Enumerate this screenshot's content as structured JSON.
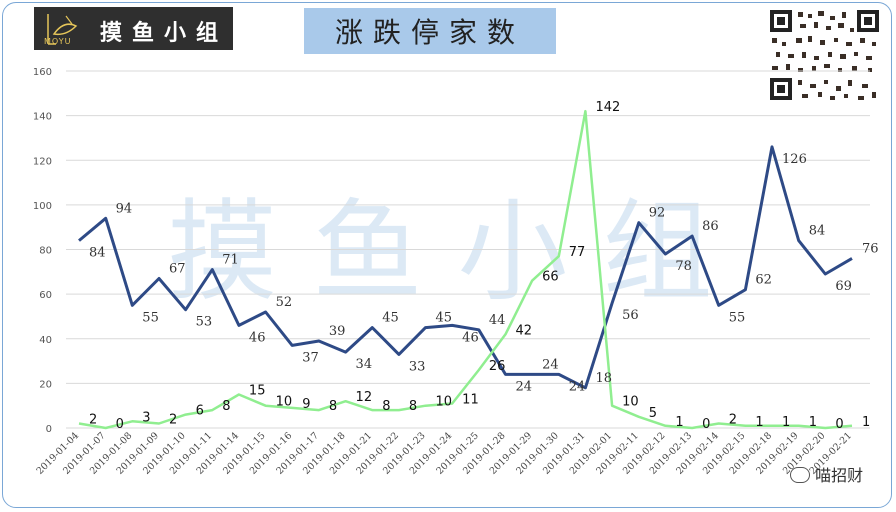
{
  "header": {
    "logo_brand": "MOYU",
    "logo_name": "摸鱼小组",
    "title": "涨跌停家数"
  },
  "watermark": "摸 鱼 小 组",
  "footer": {
    "wechat_label": "喵招财"
  },
  "colors": {
    "series_dark": "#2e4a86",
    "series_light": "#90ee90",
    "frame": "#7aa7d6",
    "title_bg": "#a9c9ea"
  },
  "chart_data": {
    "type": "line",
    "categories": [
      "2019-01-04",
      "2019-01-07",
      "2019-01-08",
      "2019-01-09",
      "2019-01-10",
      "2019-01-11",
      "2019-01-14",
      "2019-01-15",
      "2019-01-16",
      "2019-01-17",
      "2019-01-18",
      "2019-01-21",
      "2019-01-22",
      "2019-01-23",
      "2019-01-24",
      "2019-01-25",
      "2019-01-28",
      "2019-01-29",
      "2019-01-30",
      "2019-01-31",
      "2019-02-01",
      "2019-02-11",
      "2019-02-12",
      "2019-02-13",
      "2019-02-14",
      "2019-02-15",
      "2019-02-18",
      "2019-02-19",
      "2019-02-20",
      "2019-02-21"
    ],
    "x_daily": [
      "2019-01-04",
      "",
      "2019-01-07",
      "",
      "2019-01-08",
      "",
      "2019-01-09",
      "",
      "2019-01-10",
      "",
      "2019-01-11",
      "",
      "2019-01-14",
      "",
      "2019-01-15",
      "",
      "2019-01-16",
      "",
      "2019-01-17",
      "",
      "2019-01-18",
      "",
      "2019-01-21",
      "",
      "2019-01-22",
      "",
      "2019-01-23",
      "",
      "2019-01-24",
      "",
      "2019-01-25",
      "",
      "2019-01-28",
      "",
      "2019-01-29",
      "",
      "2019-01-30",
      "",
      "2019-01-31",
      "",
      "2019-02-01",
      "",
      "2019-02-11",
      "",
      "2019-02-12",
      "",
      "2019-02-13",
      "",
      "2019-02-14",
      "",
      "2019-02-15",
      "",
      "2019-02-18",
      "",
      "2019-02-19",
      "",
      "2019-02-20",
      "",
      "2019-02-21"
    ],
    "series": [
      {
        "values": [
          84,
          94,
          55,
          67,
          53,
          71,
          46,
          52,
          37,
          39,
          34,
          45,
          33,
          45,
          46,
          44,
          24,
          24,
          24,
          18,
          56,
          92,
          78,
          86,
          55,
          62,
          126,
          84,
          69,
          76
        ],
        "color": "#2e4a86"
      },
      {
        "values": [
          2,
          0,
          3,
          2,
          6,
          8,
          15,
          10,
          9,
          8,
          12,
          8,
          8,
          10,
          11,
          26,
          42,
          66,
          77,
          142,
          10,
          5,
          1,
          0,
          2,
          1,
          1,
          1,
          0,
          1
        ],
        "color": "#90ee90"
      }
    ],
    "yticks": [
      "0",
      "20",
      "40",
      "60",
      "80",
      "100",
      "120",
      "140",
      "160"
    ],
    "ylim": [
      0,
      160
    ],
    "grid": true,
    "legend": "none"
  }
}
